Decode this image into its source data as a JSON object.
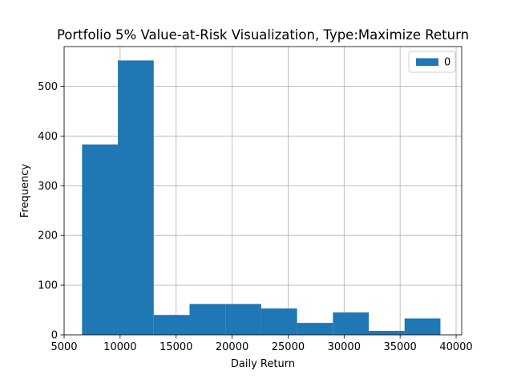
{
  "chart_data": {
    "type": "bar",
    "title": "Portfolio 5% Value-at-Risk Visualization, Type:Maximize Return",
    "xlabel": "Daily Return",
    "ylabel": "Frequency",
    "xlim": [
      5000,
      40500
    ],
    "ylim": [
      0,
      580
    ],
    "xticks": [
      5000,
      10000,
      15000,
      20000,
      25000,
      30000,
      35000,
      40000
    ],
    "yticks": [
      0,
      100,
      200,
      300,
      400,
      500
    ],
    "grid": true,
    "legend": {
      "placement": "top-right",
      "entries": [
        "0"
      ]
    },
    "series": [
      {
        "color": "#1f77b4",
        "bin_edges": [
          6600,
          9800,
          13000,
          16200,
          19400,
          22600,
          25800,
          29000,
          32200,
          35400,
          38600
        ],
        "values": [
          383,
          552,
          40,
          62,
          62,
          53,
          24,
          45,
          8,
          33
        ]
      }
    ]
  }
}
